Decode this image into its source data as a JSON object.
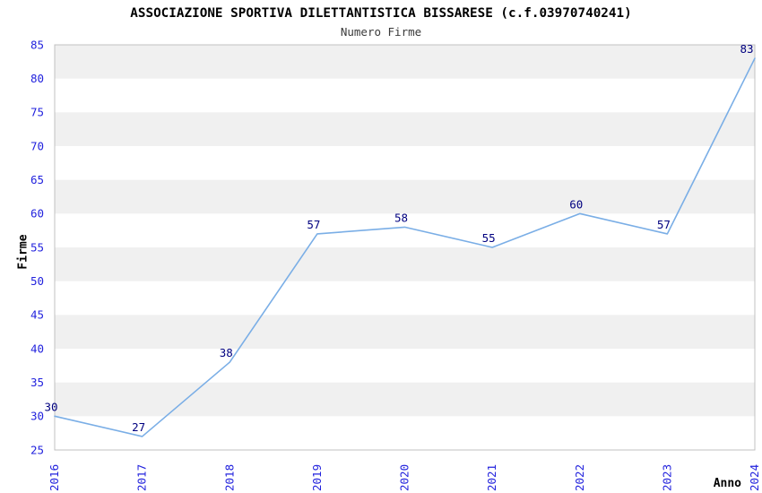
{
  "chart_data": {
    "type": "line",
    "title": "ASSOCIAZIONE SPORTIVA DILETTANTISTICA BISSARESE (c.f.03970740241)",
    "subtitle": "Numero Firme",
    "xlabel": "Anno",
    "ylabel": "Firme",
    "categories": [
      "2016",
      "2017",
      "2018",
      "2019",
      "2020",
      "2021",
      "2022",
      "2023",
      "2024"
    ],
    "series": [
      {
        "name": "Numero Firme",
        "values": [
          30,
          27,
          38,
          57,
          58,
          55,
          60,
          57,
          83
        ]
      }
    ],
    "ylim": [
      25,
      85
    ],
    "ytick_step": 5,
    "grid": "alternating-horizontal-bands",
    "legend": "none",
    "data_labels": "shown-above-left-of-points",
    "x_tick_rotation": -90,
    "colors": {
      "line": "#7aaee6",
      "band": "#f0f0f0",
      "plot_border": "#c0c0c0",
      "tick_label": "#2222dd",
      "value_label": "#000080",
      "title": "#000000",
      "subtitle": "#3a3a3a",
      "axis_title": "#000000",
      "background": "#ffffff"
    }
  }
}
